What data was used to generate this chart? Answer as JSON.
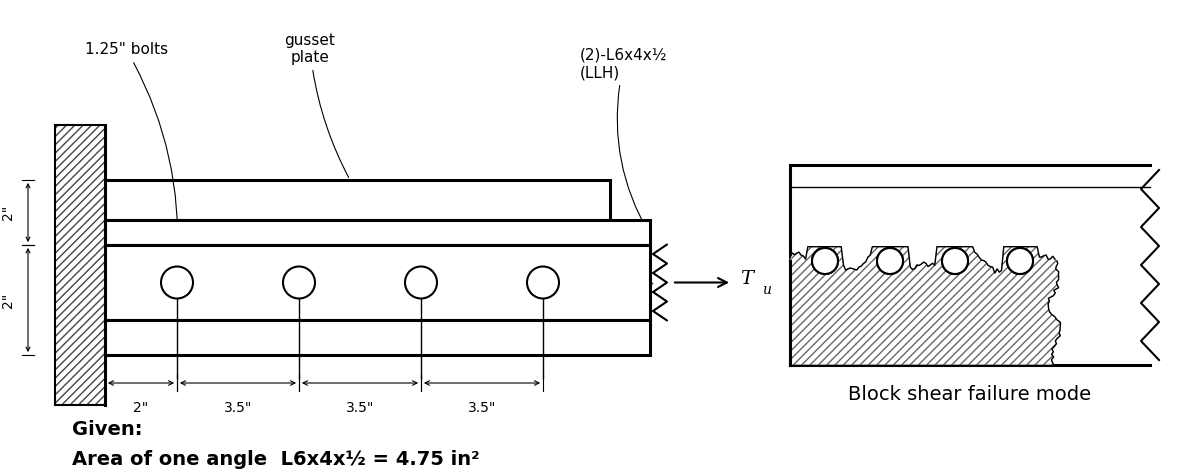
{
  "bg_color": "#ffffff",
  "line_color": "#000000",
  "bolt_label": "1.25\" bolts",
  "gusset_label": "gusset\nplate",
  "angle_label": "(2)-L6x4x½\n(LLH)",
  "given_label": "Given:",
  "area_label": "Area of one angle  L6x4x½ = 4.75 in²",
  "block_shear_label": "Block shear failure mode",
  "dim_labels": [
    "2\"",
    "3.5\"",
    "3.5\"",
    "3.5\""
  ],
  "vdim_label1": "2\"",
  "vdim_label2": "2\""
}
